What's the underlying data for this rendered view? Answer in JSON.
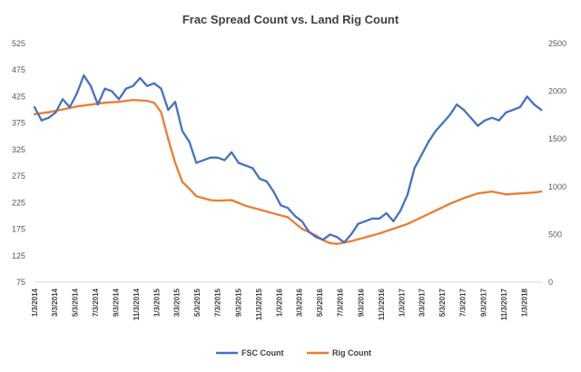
{
  "chart_data": {
    "type": "line",
    "title": "Frac Spread Count vs. Land Rig Count",
    "xlabel": "",
    "ylabel": "",
    "y2label": "",
    "ylim": [
      75,
      525
    ],
    "y2lim": [
      0,
      2500
    ],
    "yticks": [
      "75",
      "125",
      "175",
      "225",
      "275",
      "325",
      "375",
      "425",
      "475",
      "525"
    ],
    "y2ticks": [
      "0",
      "500",
      "1000",
      "1500",
      "2000",
      "2500"
    ],
    "xtick_labels": [
      "1/3/2014",
      "3/3/2014",
      "5/3/2014",
      "7/3/2014",
      "9/3/2014",
      "11/3/2014",
      "1/3/2015",
      "3/3/2015",
      "5/3/2015",
      "7/3/2015",
      "9/3/2015",
      "11/3/2015",
      "1/3/2016",
      "3/3/2016",
      "5/3/2016",
      "7/3/2016",
      "9/3/2016",
      "11/3/2016",
      "1/3/2017",
      "3/3/2017",
      "5/3/2017",
      "7/3/2017",
      "9/3/2017",
      "11/3/2017",
      "1/3/2018"
    ],
    "x_range": [
      "1/3/2014",
      "2/28/2018"
    ],
    "grid": false,
    "legend_position": "bottom",
    "series": [
      {
        "name": "FSC Count",
        "axis": "left",
        "color": "#4472C4",
        "x": [
          "1/3/2014",
          "1/24/2014",
          "2/14/2014",
          "3/7/2014",
          "3/28/2014",
          "4/18/2014",
          "5/9/2014",
          "5/30/2014",
          "6/20/2014",
          "7/11/2014",
          "8/1/2014",
          "8/22/2014",
          "9/12/2014",
          "10/3/2014",
          "10/24/2014",
          "11/14/2014",
          "12/5/2014",
          "12/26/2014",
          "1/16/2015",
          "2/6/2015",
          "2/27/2015",
          "3/20/2015",
          "4/10/2015",
          "5/1/2015",
          "5/22/2015",
          "6/12/2015",
          "7/3/2015",
          "7/24/2015",
          "8/14/2015",
          "9/4/2015",
          "9/25/2015",
          "10/16/2015",
          "11/6/2015",
          "11/27/2015",
          "12/18/2015",
          "1/8/2016",
          "1/29/2016",
          "2/19/2016",
          "3/11/2016",
          "4/1/2016",
          "4/22/2016",
          "5/13/2016",
          "6/3/2016",
          "6/24/2016",
          "7/15/2016",
          "8/5/2016",
          "8/26/2016",
          "9/16/2016",
          "10/7/2016",
          "10/28/2016",
          "11/18/2016",
          "12/9/2016",
          "12/30/2016",
          "1/20/2017",
          "2/10/2017",
          "3/3/2017",
          "3/24/2017",
          "4/14/2017",
          "5/5/2017",
          "5/26/2017",
          "6/16/2017",
          "7/7/2017",
          "7/28/2017",
          "8/18/2017",
          "9/8/2017",
          "9/29/2017",
          "10/20/2017",
          "11/10/2017",
          "12/1/2017",
          "12/22/2017",
          "1/12/2018",
          "2/2/2018",
          "2/23/2018"
        ],
        "values": [
          405,
          380,
          385,
          395,
          420,
          405,
          430,
          465,
          445,
          410,
          440,
          435,
          420,
          440,
          445,
          460,
          445,
          450,
          440,
          400,
          415,
          360,
          340,
          300,
          305,
          310,
          310,
          305,
          320,
          300,
          295,
          290,
          270,
          265,
          245,
          220,
          215,
          200,
          190,
          170,
          160,
          155,
          165,
          160,
          150,
          165,
          185,
          190,
          195,
          195,
          205,
          190,
          210,
          240,
          290,
          315,
          340,
          360,
          375,
          390,
          410,
          400,
          385,
          370,
          380,
          385,
          380,
          395,
          400,
          405,
          425,
          410,
          400
        ]
      },
      {
        "name": "Rig Count",
        "axis": "right",
        "color": "#ED7D31",
        "x": [
          "1/3/2014",
          "2/14/2014",
          "3/28/2014",
          "5/9/2014",
          "6/20/2014",
          "8/1/2014",
          "9/12/2014",
          "10/24/2014",
          "12/5/2014",
          "12/26/2014",
          "1/16/2015",
          "2/6/2015",
          "2/27/2015",
          "3/20/2015",
          "4/10/2015",
          "5/1/2015",
          "5/22/2015",
          "6/12/2015",
          "7/3/2015",
          "8/14/2015",
          "9/25/2015",
          "11/6/2015",
          "12/18/2015",
          "1/29/2016",
          "3/11/2016",
          "4/22/2016",
          "5/13/2016",
          "6/3/2016",
          "6/24/2016",
          "8/5/2016",
          "9/16/2016",
          "10/28/2016",
          "12/9/2016",
          "1/20/2017",
          "3/3/2017",
          "4/14/2017",
          "5/26/2017",
          "7/7/2017",
          "8/18/2017",
          "9/29/2017",
          "11/10/2017",
          "12/22/2017",
          "2/2/2018",
          "2/23/2018"
        ],
        "values": [
          1760,
          1780,
          1810,
          1840,
          1860,
          1880,
          1890,
          1910,
          1900,
          1880,
          1780,
          1500,
          1250,
          1050,
          980,
          900,
          880,
          860,
          855,
          860,
          800,
          760,
          720,
          680,
          560,
          490,
          440,
          410,
          400,
          430,
          470,
          510,
          560,
          610,
          680,
          750,
          820,
          880,
          930,
          950,
          920,
          930,
          940,
          950
        ]
      }
    ]
  }
}
